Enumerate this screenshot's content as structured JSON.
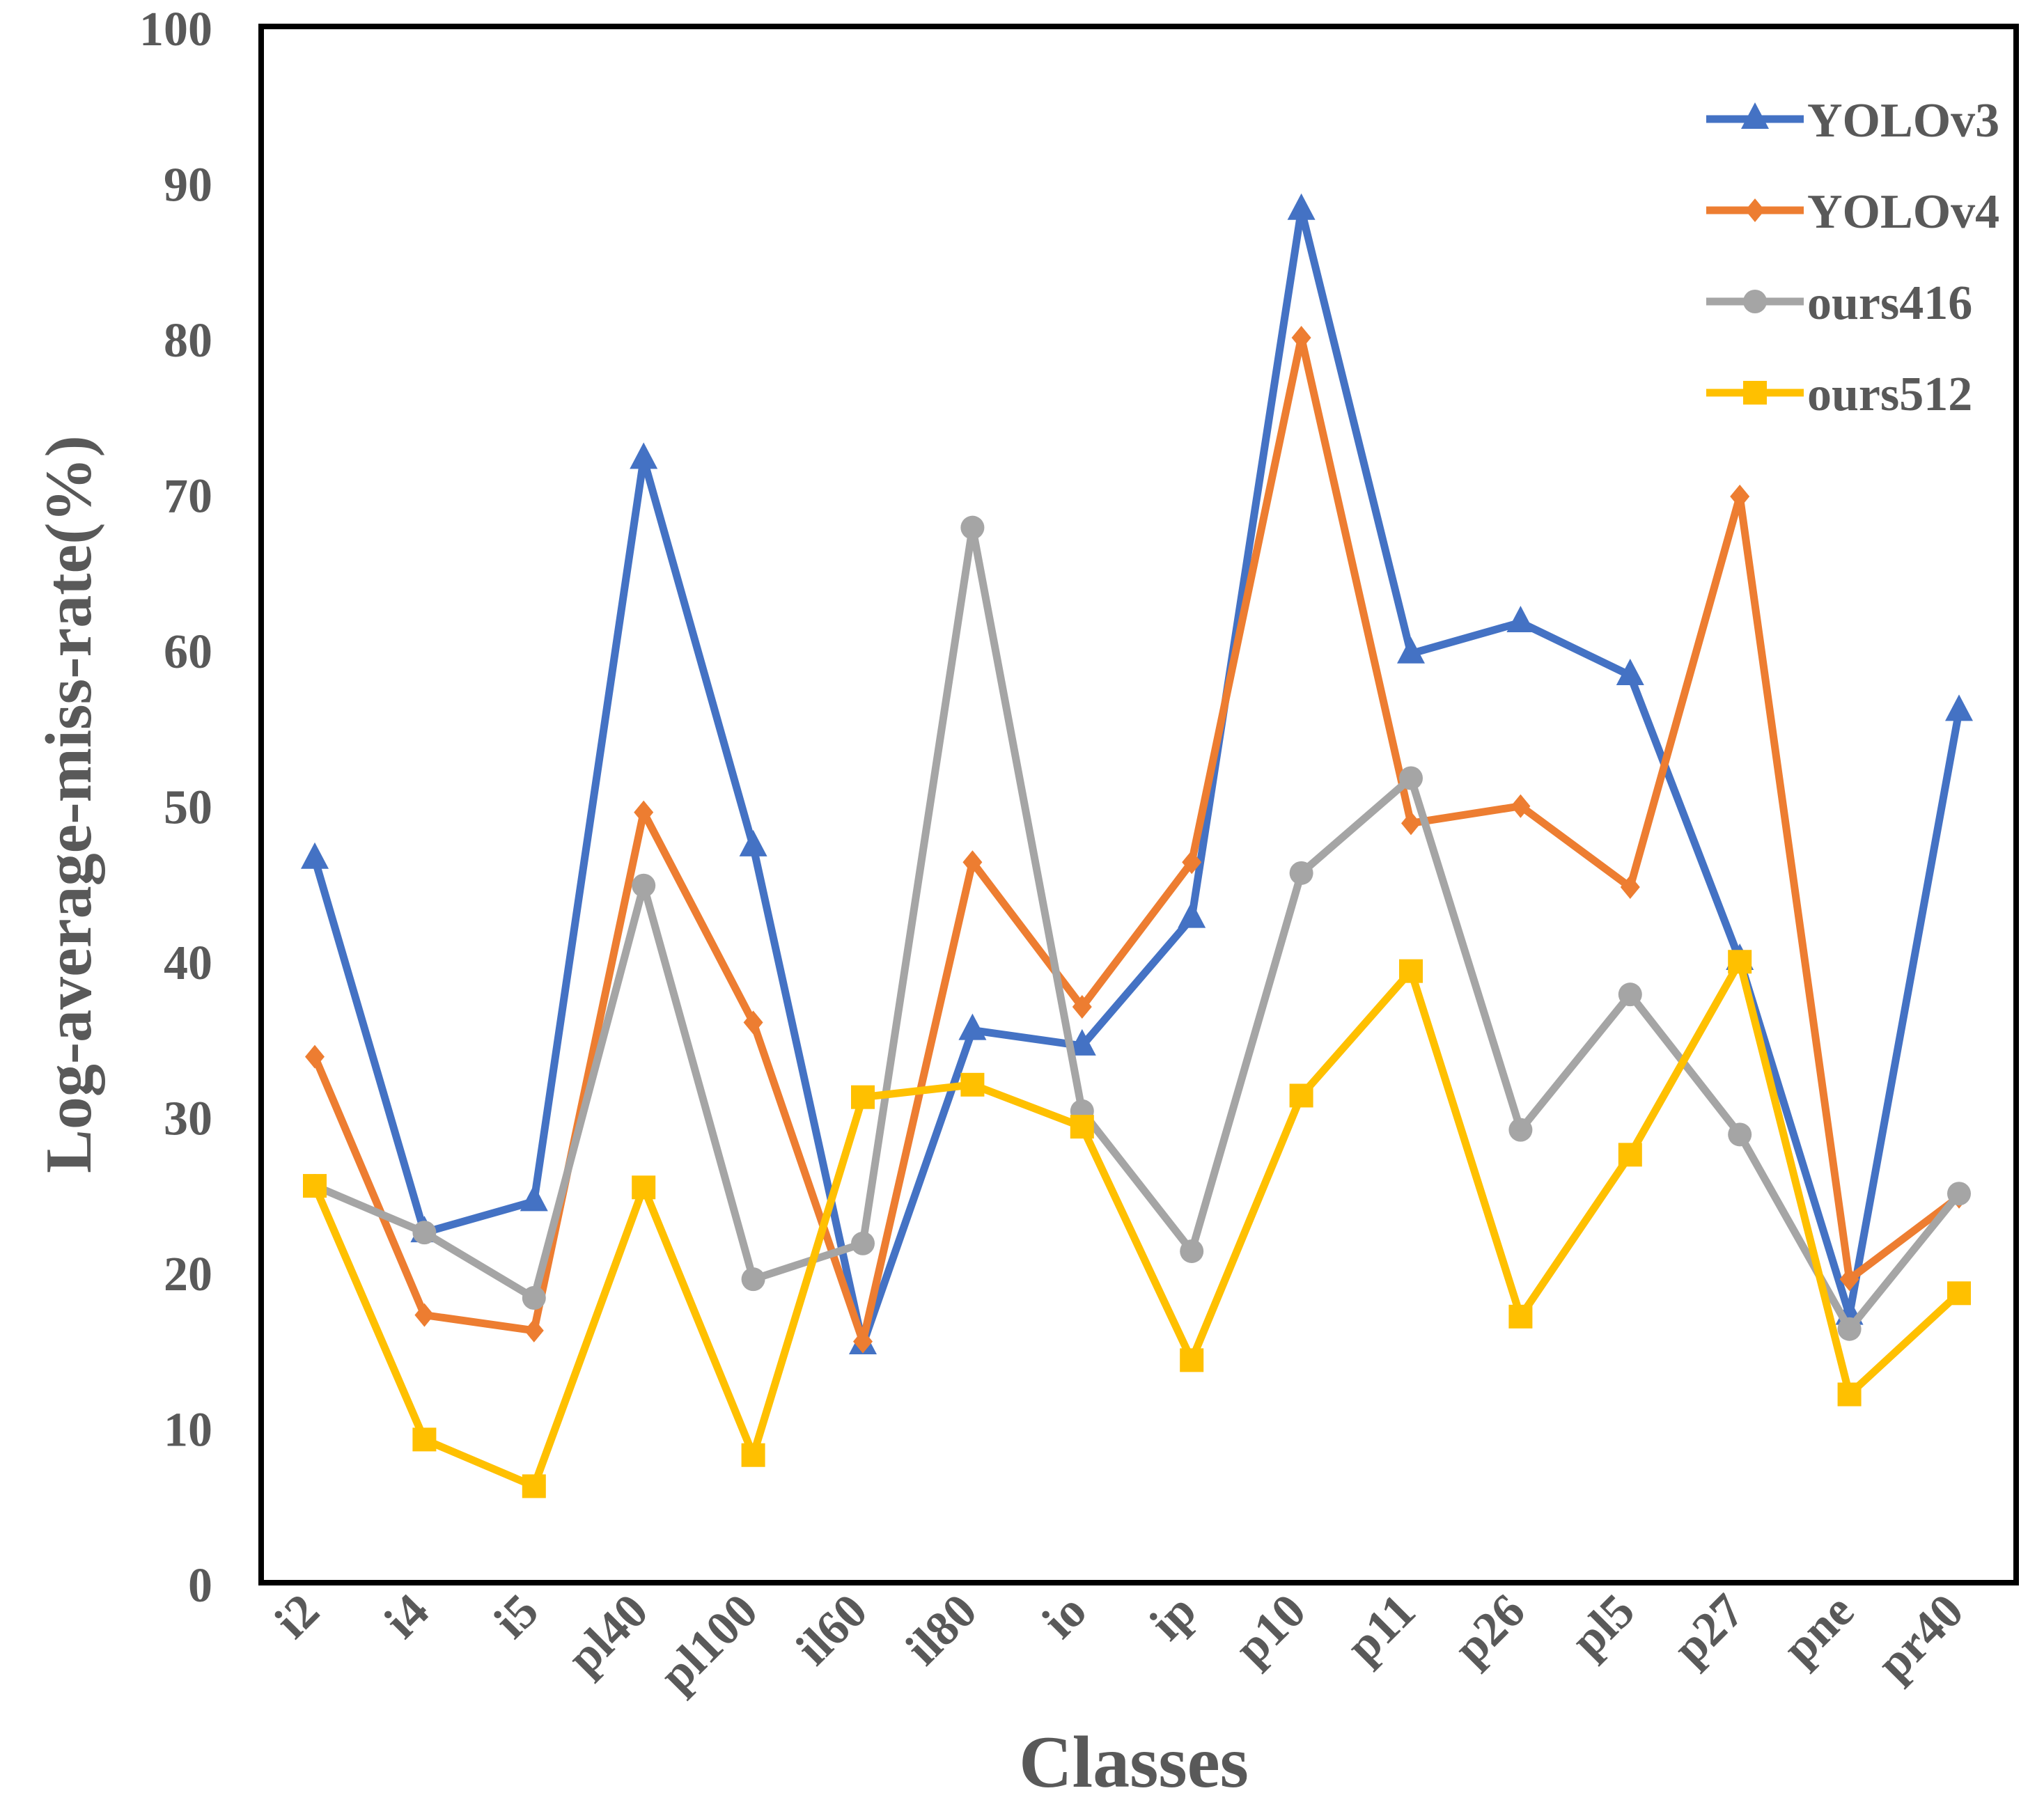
{
  "chart_data": {
    "type": "line",
    "title": "",
    "xlabel": "Classes",
    "ylabel": "Log-average-miss-rate(%)",
    "ylim": [
      0,
      100
    ],
    "yticks": [
      0,
      10,
      20,
      30,
      40,
      50,
      60,
      70,
      80,
      90,
      100
    ],
    "grid": false,
    "legend_position": "top-right",
    "categories": [
      "i2",
      "i4",
      "i5",
      "pl40",
      "pl100",
      "il60",
      "il80",
      "io",
      "ip",
      "p10",
      "p11",
      "p26",
      "pl5",
      "p27",
      "pne",
      "pr40"
    ],
    "series": [
      {
        "name": "YOLOv3",
        "color": "#4472C4",
        "marker": "triangle",
        "values": [
          46.5,
          22.5,
          24.5,
          72.2,
          47.3,
          15.3,
          35.5,
          34.5,
          42.7,
          88.2,
          59.7,
          61.7,
          58.3,
          40.0,
          17.2,
          56.0
        ]
      },
      {
        "name": "YOLOv4",
        "color": "#ED7D31",
        "marker": "diamond",
        "values": [
          33.8,
          17.2,
          16.2,
          49.5,
          36.0,
          15.5,
          46.3,
          37.0,
          46.3,
          80.0,
          48.8,
          49.9,
          44.7,
          69.8,
          19.5,
          24.8
        ]
      },
      {
        "name": "ours416",
        "color": "#A5A5A5",
        "marker": "circle",
        "values": [
          25.5,
          22.5,
          18.3,
          44.8,
          19.5,
          21.8,
          67.8,
          30.3,
          21.3,
          45.6,
          51.7,
          29.1,
          37.8,
          28.8,
          16.3,
          25.0
        ]
      },
      {
        "name": "ours512",
        "color": "#FFC000",
        "marker": "square",
        "values": [
          25.5,
          9.2,
          6.2,
          25.4,
          8.2,
          31.2,
          32.0,
          29.3,
          14.3,
          31.3,
          39.3,
          17.1,
          27.5,
          39.9,
          12.1,
          18.6
        ]
      }
    ]
  }
}
